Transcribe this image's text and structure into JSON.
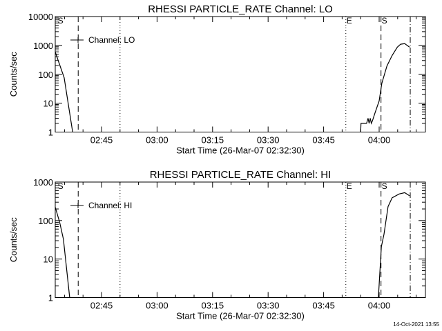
{
  "footer": {
    "timestamp": "14-Oct-2021 13:55"
  },
  "chart_data": [
    {
      "type": "line",
      "title": "RHESSI PARTICLE_RATE Channel: LO",
      "xlabel": "Start Time (26-Mar-07 02:32:30)",
      "ylabel": "Counts/sec",
      "yscale": "log",
      "ylim": [
        1,
        10000
      ],
      "yticks": [
        "1",
        "10",
        "100",
        "1000",
        "10000"
      ],
      "x_units": "minutes after 02:32:30",
      "xlim": [
        0,
        100
      ],
      "xticks": [
        {
          "t": 12.5,
          "label": "02:45"
        },
        {
          "t": 27.5,
          "label": "03:00"
        },
        {
          "t": 42.5,
          "label": "03:15"
        },
        {
          "t": 57.5,
          "label": "03:30"
        },
        {
          "t": 72.5,
          "label": "03:45"
        },
        {
          "t": 87.5,
          "label": "04:00"
        }
      ],
      "legend": {
        "label": "Channel: LO",
        "placement": "top-left"
      },
      "markers": [
        {
          "t": 0.5,
          "style": "none",
          "label": "S"
        },
        {
          "t": 6.2,
          "style": "dashed",
          "label": ""
        },
        {
          "t": 17.5,
          "style": "dotted",
          "label": ""
        },
        {
          "t": 78.5,
          "style": "dotted",
          "label": "E"
        },
        {
          "t": 88.0,
          "style": "dashed",
          "label": "S"
        },
        {
          "t": 95.9,
          "style": "dashdot",
          "label": ""
        }
      ],
      "series": [
        {
          "name": "LO start",
          "x": [
            0,
            2.4,
            4.7
          ],
          "y": [
            590,
            76,
            1
          ]
        },
        {
          "name": "LO end",
          "x": [
            82.5,
            82.6,
            84.1,
            84.5,
            84.8,
            85.1,
            85.4,
            85.7,
            86.4,
            87.5,
            88.2,
            89.6,
            91.0,
            92.4,
            93.3,
            94.4,
            95.7
          ],
          "y": [
            1,
            2,
            2,
            3,
            2,
            3,
            2,
            2.5,
            4.7,
            12,
            48,
            195,
            450,
            870,
            1100,
            1150,
            870
          ]
        }
      ]
    },
    {
      "type": "line",
      "title": "RHESSI PARTICLE_RATE Channel: HI",
      "xlabel": "Start Time (26-Mar-07 02:32:30)",
      "ylabel": "Counts/sec",
      "yscale": "log",
      "ylim": [
        1,
        1000
      ],
      "yticks": [
        "1",
        "10",
        "100",
        "1000"
      ],
      "x_units": "minutes after 02:32:30",
      "xlim": [
        0,
        100
      ],
      "xticks": [
        {
          "t": 12.5,
          "label": "02:45"
        },
        {
          "t": 27.5,
          "label": "03:00"
        },
        {
          "t": 42.5,
          "label": "03:15"
        },
        {
          "t": 57.5,
          "label": "03:30"
        },
        {
          "t": 72.5,
          "label": "03:45"
        },
        {
          "t": 87.5,
          "label": "04:00"
        }
      ],
      "legend": {
        "label": "Channel: HI",
        "placement": "top-left"
      },
      "markers": [
        {
          "t": 0.5,
          "style": "none",
          "label": "S"
        },
        {
          "t": 6.2,
          "style": "dashed",
          "label": ""
        },
        {
          "t": 17.5,
          "style": "dotted",
          "label": ""
        },
        {
          "t": 78.5,
          "style": "dotted",
          "label": "E"
        },
        {
          "t": 88.0,
          "style": "dashed",
          "label": "S"
        },
        {
          "t": 95.9,
          "style": "dashdot",
          "label": ""
        }
      ],
      "series": [
        {
          "name": "HI start",
          "x": [
            0,
            1.2,
            2.2,
            3.9
          ],
          "y": [
            222,
            90,
            33,
            1
          ]
        },
        {
          "name": "HI end",
          "x": [
            87.3,
            88.1,
            88.8,
            89.9,
            91.0,
            92.9,
            94.4,
            95.1,
            95.7
          ],
          "y": [
            1,
            21,
            44,
            230,
            390,
            490,
            530,
            480,
            440
          ]
        }
      ]
    }
  ]
}
